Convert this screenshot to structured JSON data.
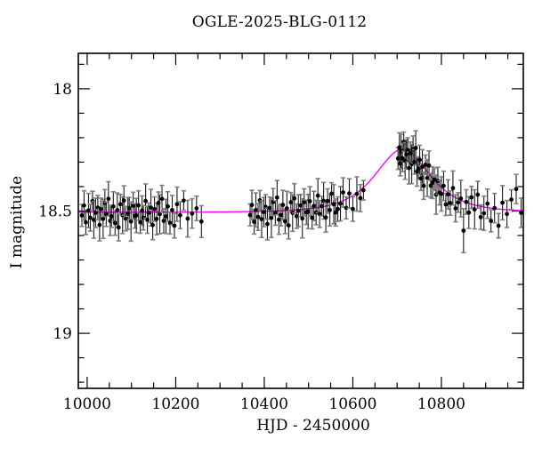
{
  "title": "OGLE-2025-BLG-0112",
  "chart_data": {
    "type": "scatter",
    "title": "OGLE-2025-BLG-0112",
    "xlabel": "HJD - 2450000",
    "ylabel": "I magnitude",
    "xlim": [
      9980,
      10985
    ],
    "ylim": [
      17.855,
      19.225
    ],
    "y_axis_inverted_magnitudes": true,
    "grid": false,
    "x_ticks": [
      10000,
      10200,
      10400,
      10600,
      10800
    ],
    "x_tick_labels": [
      "10000",
      "10200",
      "10400",
      "10600",
      "10800"
    ],
    "x_minor_step": 50,
    "y_ticks": [
      18,
      18.5,
      19
    ],
    "y_tick_labels": [
      "18",
      "18.5",
      "19"
    ],
    "y_minor_step": 0.1,
    "colors": {
      "background": "#ffffff",
      "frame": "#000000",
      "point": "#000000",
      "errorbar": "#1a1a1a",
      "errorbar_cap": "#808080",
      "model": "#ff00ff"
    },
    "model": {
      "name": "paczynski-microlensing-fit",
      "baseline_I0": 18.505,
      "t0": 10712,
      "tE": 70,
      "u0": 1.12,
      "peak_mag": 18.25
    },
    "points_format": [
      "hjd_minus_2450000",
      "I_mag",
      "err_mag"
    ],
    "points": [
      [
        9988,
        18.518,
        0.045
      ],
      [
        9993,
        18.477,
        0.06
      ],
      [
        9997,
        18.546,
        0.05
      ],
      [
        10003,
        18.498,
        0.07
      ],
      [
        10007,
        18.527,
        0.055
      ],
      [
        10012,
        18.459,
        0.04
      ],
      [
        10015,
        18.536,
        0.075
      ],
      [
        10019,
        18.507,
        0.06
      ],
      [
        10024,
        18.486,
        0.05
      ],
      [
        10028,
        18.557,
        0.065
      ],
      [
        10031,
        18.492,
        0.045
      ],
      [
        10036,
        18.532,
        0.08
      ],
      [
        10040,
        18.467,
        0.055
      ],
      [
        10043,
        18.513,
        0.05
      ],
      [
        10048,
        18.45,
        0.07
      ],
      [
        10052,
        18.54,
        0.06
      ],
      [
        10055,
        18.522,
        0.045
      ],
      [
        10059,
        18.481,
        0.06
      ],
      [
        10063,
        18.549,
        0.05
      ],
      [
        10068,
        18.496,
        0.07
      ],
      [
        10071,
        18.567,
        0.055
      ],
      [
        10075,
        18.472,
        0.04
      ],
      [
        10080,
        18.517,
        0.075
      ],
      [
        10083,
        18.457,
        0.06
      ],
      [
        10087,
        18.531,
        0.05
      ],
      [
        10092,
        18.51,
        0.065
      ],
      [
        10095,
        18.489,
        0.045
      ],
      [
        10099,
        18.543,
        0.08
      ],
      [
        10104,
        18.478,
        0.055
      ],
      [
        10108,
        18.52,
        0.05
      ],
      [
        10111,
        18.518,
        0.07
      ],
      [
        10116,
        18.477,
        0.06
      ],
      [
        10120,
        18.546,
        0.045
      ],
      [
        10124,
        18.498,
        0.06
      ],
      [
        10127,
        18.527,
        0.05
      ],
      [
        10132,
        18.459,
        0.07
      ],
      [
        10136,
        18.536,
        0.055
      ],
      [
        10139,
        18.507,
        0.04
      ],
      [
        10144,
        18.486,
        0.075
      ],
      [
        10148,
        18.557,
        0.06
      ],
      [
        10152,
        18.492,
        0.05
      ],
      [
        10157,
        18.532,
        0.065
      ],
      [
        10161,
        18.467,
        0.045
      ],
      [
        10164,
        18.513,
        0.08
      ],
      [
        10169,
        18.45,
        0.055
      ],
      [
        10173,
        18.54,
        0.05
      ],
      [
        10178,
        18.522,
        0.07
      ],
      [
        10182,
        18.481,
        0.06
      ],
      [
        10187,
        18.549,
        0.045
      ],
      [
        10192,
        18.496,
        0.06
      ],
      [
        10197,
        18.56,
        0.05
      ],
      [
        10203,
        18.472,
        0.07
      ],
      [
        10210,
        18.517,
        0.055
      ],
      [
        10218,
        18.457,
        0.04
      ],
      [
        10227,
        18.531,
        0.075
      ],
      [
        10237,
        18.51,
        0.06
      ],
      [
        10247,
        18.489,
        0.05
      ],
      [
        10258,
        18.543,
        0.065
      ],
      [
        10368,
        18.516,
        0.045
      ],
      [
        10372,
        18.475,
        0.06
      ],
      [
        10377,
        18.544,
        0.05
      ],
      [
        10381,
        18.496,
        0.07
      ],
      [
        10386,
        18.524,
        0.055
      ],
      [
        10390,
        18.456,
        0.04
      ],
      [
        10394,
        18.533,
        0.075
      ],
      [
        10399,
        18.504,
        0.06
      ],
      [
        10403,
        18.483,
        0.05
      ],
      [
        10407,
        18.553,
        0.065
      ],
      [
        10412,
        18.488,
        0.045
      ],
      [
        10416,
        18.528,
        0.08
      ],
      [
        10420,
        18.463,
        0.055
      ],
      [
        10425,
        18.508,
        0.05
      ],
      [
        10429,
        18.445,
        0.07
      ],
      [
        10433,
        18.535,
        0.06
      ],
      [
        10438,
        18.516,
        0.045
      ],
      [
        10442,
        18.475,
        0.06
      ],
      [
        10447,
        18.542,
        0.05
      ],
      [
        10451,
        18.489,
        0.07
      ],
      [
        10455,
        18.559,
        0.055
      ],
      [
        10460,
        18.464,
        0.04
      ],
      [
        10464,
        18.508,
        0.075
      ],
      [
        10468,
        18.448,
        0.06
      ],
      [
        10473,
        18.521,
        0.05
      ],
      [
        10477,
        18.499,
        0.065
      ],
      [
        10482,
        18.477,
        0.045
      ],
      [
        10486,
        18.53,
        0.08
      ],
      [
        10490,
        18.464,
        0.055
      ],
      [
        10495,
        18.505,
        0.05
      ],
      [
        10499,
        18.502,
        0.07
      ],
      [
        10503,
        18.46,
        0.06
      ],
      [
        10508,
        18.528,
        0.045
      ],
      [
        10512,
        18.479,
        0.06
      ],
      [
        10517,
        18.506,
        0.05
      ],
      [
        10521,
        18.437,
        0.07
      ],
      [
        10525,
        18.512,
        0.055
      ],
      [
        10530,
        18.48,
        0.04
      ],
      [
        10534,
        18.458,
        0.075
      ],
      [
        10539,
        18.526,
        0.06
      ],
      [
        10543,
        18.459,
        0.05
      ],
      [
        10548,
        18.496,
        0.065
      ],
      [
        10552,
        18.429,
        0.045
      ],
      [
        10557,
        18.472,
        0.08
      ],
      [
        10561,
        18.506,
        0.055
      ],
      [
        10566,
        18.492,
        0.05
      ],
      [
        10572,
        18.47,
        0.07
      ],
      [
        10578,
        18.424,
        0.06
      ],
      [
        10585,
        18.487,
        0.045
      ],
      [
        10592,
        18.428,
        0.06
      ],
      [
        10600,
        18.492,
        0.05
      ],
      [
        10609,
        18.43,
        0.07
      ],
      [
        10617,
        18.447,
        0.055
      ],
      [
        10624,
        18.415,
        0.04
      ],
      [
        10702,
        18.285,
        0.045
      ],
      [
        10705,
        18.24,
        0.06
      ],
      [
        10707,
        18.306,
        0.05
      ],
      [
        10709,
        18.256,
        0.07
      ],
      [
        10712,
        18.284,
        0.055
      ],
      [
        10715,
        18.217,
        0.04
      ],
      [
        10718,
        18.295,
        0.075
      ],
      [
        10721,
        18.268,
        0.06
      ],
      [
        10724,
        18.25,
        0.05
      ],
      [
        10727,
        18.324,
        0.065
      ],
      [
        10730,
        18.263,
        0.045
      ],
      [
        10733,
        18.308,
        0.08
      ],
      [
        10736,
        18.248,
        0.055
      ],
      [
        10739,
        18.299,
        0.05
      ],
      [
        10742,
        18.242,
        0.07
      ],
      [
        10745,
        18.338,
        0.06
      ],
      [
        10748,
        18.326,
        0.045
      ],
      [
        10751,
        18.291,
        0.06
      ],
      [
        10754,
        18.366,
        0.05
      ],
      [
        10757,
        18.319,
        0.07
      ],
      [
        10760,
        18.397,
        0.055
      ],
      [
        10764,
        18.311,
        0.04
      ],
      [
        10768,
        18.365,
        0.075
      ],
      [
        10772,
        18.314,
        0.06
      ],
      [
        10776,
        18.396,
        0.05
      ],
      [
        10780,
        18.384,
        0.065
      ],
      [
        10784,
        18.371,
        0.045
      ],
      [
        10788,
        18.433,
        0.08
      ],
      [
        10792,
        18.376,
        0.055
      ],
      [
        10796,
        18.425,
        0.05
      ],
      [
        10800,
        18.43,
        0.07
      ],
      [
        10805,
        18.397,
        0.06
      ],
      [
        10810,
        18.473,
        0.045
      ],
      [
        10815,
        18.432,
        0.06
      ],
      [
        10820,
        18.467,
        0.05
      ],
      [
        10826,
        18.406,
        0.07
      ],
      [
        10832,
        18.489,
        0.055
      ],
      [
        10838,
        18.465,
        0.04
      ],
      [
        10844,
        18.449,
        0.075
      ],
      [
        10850,
        18.58,
        0.09
      ],
      [
        10856,
        18.463,
        0.05
      ],
      [
        10862,
        18.506,
        0.065
      ],
      [
        10868,
        18.444,
        0.045
      ],
      [
        10875,
        18.493,
        0.08
      ],
      [
        10882,
        18.433,
        0.055
      ],
      [
        10889,
        18.525,
        0.05
      ],
      [
        10896,
        18.509,
        0.07
      ],
      [
        10904,
        18.47,
        0.06
      ],
      [
        10912,
        18.54,
        0.045
      ],
      [
        10920,
        18.488,
        0.06
      ],
      [
        10929,
        18.56,
        0.05
      ],
      [
        10938,
        18.466,
        0.07
      ],
      [
        10948,
        18.512,
        0.055
      ],
      [
        10958,
        18.453,
        0.04
      ],
      [
        10969,
        18.41,
        0.06
      ],
      [
        10980,
        18.507,
        0.06
      ]
    ]
  }
}
